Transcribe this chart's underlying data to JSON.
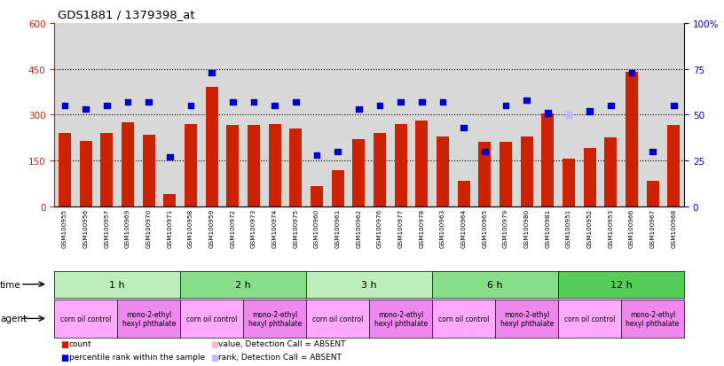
{
  "title": "GDS1881 / 1379398_at",
  "samples": [
    "GSM100955",
    "GSM100956",
    "GSM100957",
    "GSM100969",
    "GSM100970",
    "GSM100971",
    "GSM100958",
    "GSM100959",
    "GSM100972",
    "GSM100973",
    "GSM100974",
    "GSM100975",
    "GSM100960",
    "GSM100961",
    "GSM100962",
    "GSM100976",
    "GSM100977",
    "GSM100978",
    "GSM100963",
    "GSM100964",
    "GSM100965",
    "GSM100979",
    "GSM100980",
    "GSM100981",
    "GSM100951",
    "GSM100952",
    "GSM100953",
    "GSM100966",
    "GSM100967",
    "GSM100968"
  ],
  "counts": [
    240,
    215,
    240,
    275,
    235,
    40,
    270,
    390,
    265,
    265,
    270,
    255,
    65,
    120,
    220,
    240,
    270,
    280,
    230,
    85,
    210,
    210,
    230,
    305,
    155,
    190,
    225,
    440,
    85,
    265
  ],
  "ranks": [
    55,
    53,
    55,
    57,
    57,
    27,
    55,
    73,
    57,
    57,
    55,
    57,
    28,
    30,
    53,
    55,
    57,
    57,
    57,
    43,
    30,
    55,
    58,
    51,
    50,
    52,
    55,
    73,
    30,
    55
  ],
  "absent_count_indices": [],
  "absent_rank_indices": [
    24
  ],
  "time_groups": [
    {
      "label": "1 h",
      "start": 0,
      "end": 6,
      "color": "#bbeebb"
    },
    {
      "label": "2 h",
      "start": 6,
      "end": 12,
      "color": "#88dd88"
    },
    {
      "label": "3 h",
      "start": 12,
      "end": 18,
      "color": "#bbeebb"
    },
    {
      "label": "6 h",
      "start": 18,
      "end": 24,
      "color": "#88dd88"
    },
    {
      "label": "12 h",
      "start": 24,
      "end": 30,
      "color": "#55cc55"
    }
  ],
  "agent_groups": [
    {
      "label": "corn oil control",
      "start": 0,
      "end": 3,
      "color": "#ffaaff"
    },
    {
      "label": "mono-2-ethyl\nhexyl phthalate",
      "start": 3,
      "end": 6,
      "color": "#ee88ee"
    },
    {
      "label": "corn oil control",
      "start": 6,
      "end": 9,
      "color": "#ffaaff"
    },
    {
      "label": "mono-2-ethyl\nhexyl phthalate",
      "start": 9,
      "end": 12,
      "color": "#ee88ee"
    },
    {
      "label": "corn oil control",
      "start": 12,
      "end": 15,
      "color": "#ffaaff"
    },
    {
      "label": "mono-2-ethyl\nhexyl phthalate",
      "start": 15,
      "end": 18,
      "color": "#ee88ee"
    },
    {
      "label": "corn oil control",
      "start": 18,
      "end": 21,
      "color": "#ffaaff"
    },
    {
      "label": "mono-2-ethyl\nhexyl phthalate",
      "start": 21,
      "end": 24,
      "color": "#ee88ee"
    },
    {
      "label": "corn oil control",
      "start": 24,
      "end": 27,
      "color": "#ffaaff"
    },
    {
      "label": "mono-2-ethyl\nhexyl phthalate",
      "start": 27,
      "end": 30,
      "color": "#ee88ee"
    }
  ],
  "ylim_left": [
    0,
    600
  ],
  "ylim_right": [
    0,
    100
  ],
  "yticks_left": [
    0,
    150,
    300,
    450,
    600
  ],
  "yticks_right": [
    0,
    25,
    50,
    75,
    100
  ],
  "bar_color": "#cc2200",
  "scatter_color": "#0000cc",
  "absent_bar_color": "#ffbbbb",
  "absent_scatter_color": "#bbbbff",
  "bg_color": "#d8d8d8",
  "left_tick_color": "#cc2200",
  "right_tick_color": "#0000cc"
}
